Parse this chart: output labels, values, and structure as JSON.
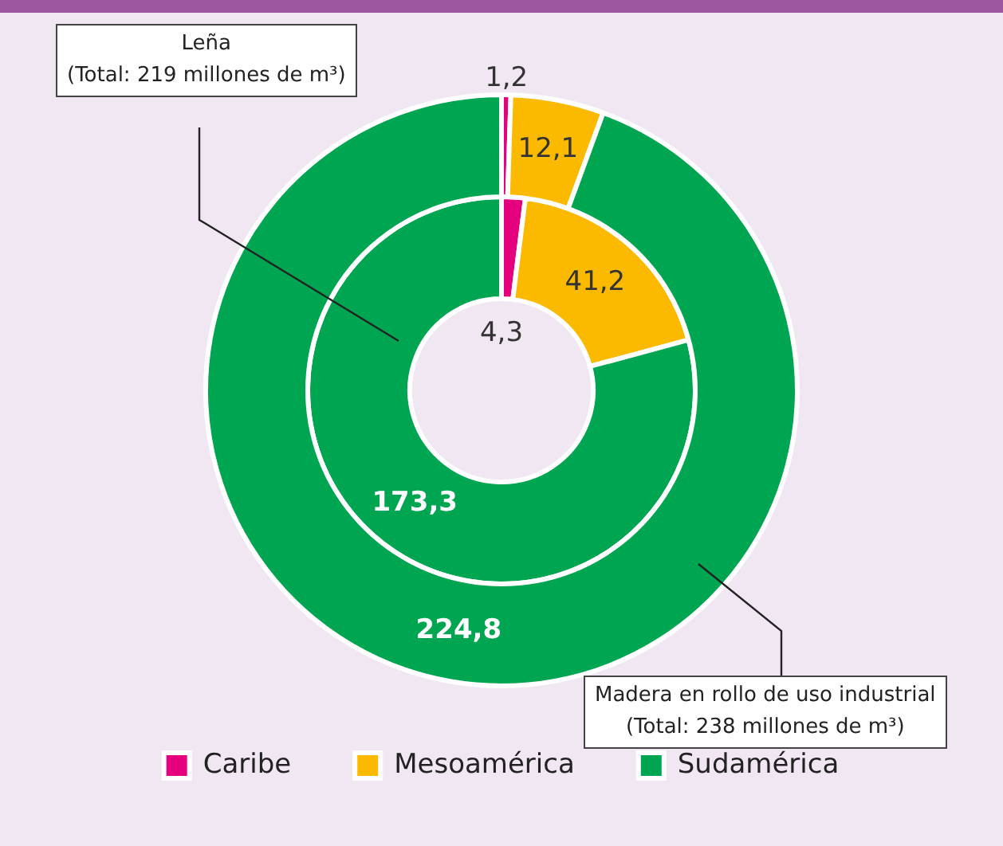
{
  "chart_data": {
    "type": "donut",
    "categories": [
      "Caribe",
      "Mesoamérica",
      "Sudamérica"
    ],
    "colors": [
      "#e5007d",
      "#fbba00",
      "#00a551"
    ],
    "series": [
      {
        "values": [
          4.3,
          41.2,
          173.3
        ],
        "value_labels": [
          "4,3",
          "41,2",
          "173,3"
        ]
      },
      {
        "values": [
          1.2,
          12.1,
          224.8
        ],
        "value_labels": [
          "1,2",
          "12,1",
          "224,8"
        ]
      }
    ],
    "annotations": [
      "Leña\n(Total: 219 millones de m³)",
      "Madera en rollo de uso industrial\n(Total: 238 millones de m³)"
    ],
    "legend": "bottom"
  }
}
